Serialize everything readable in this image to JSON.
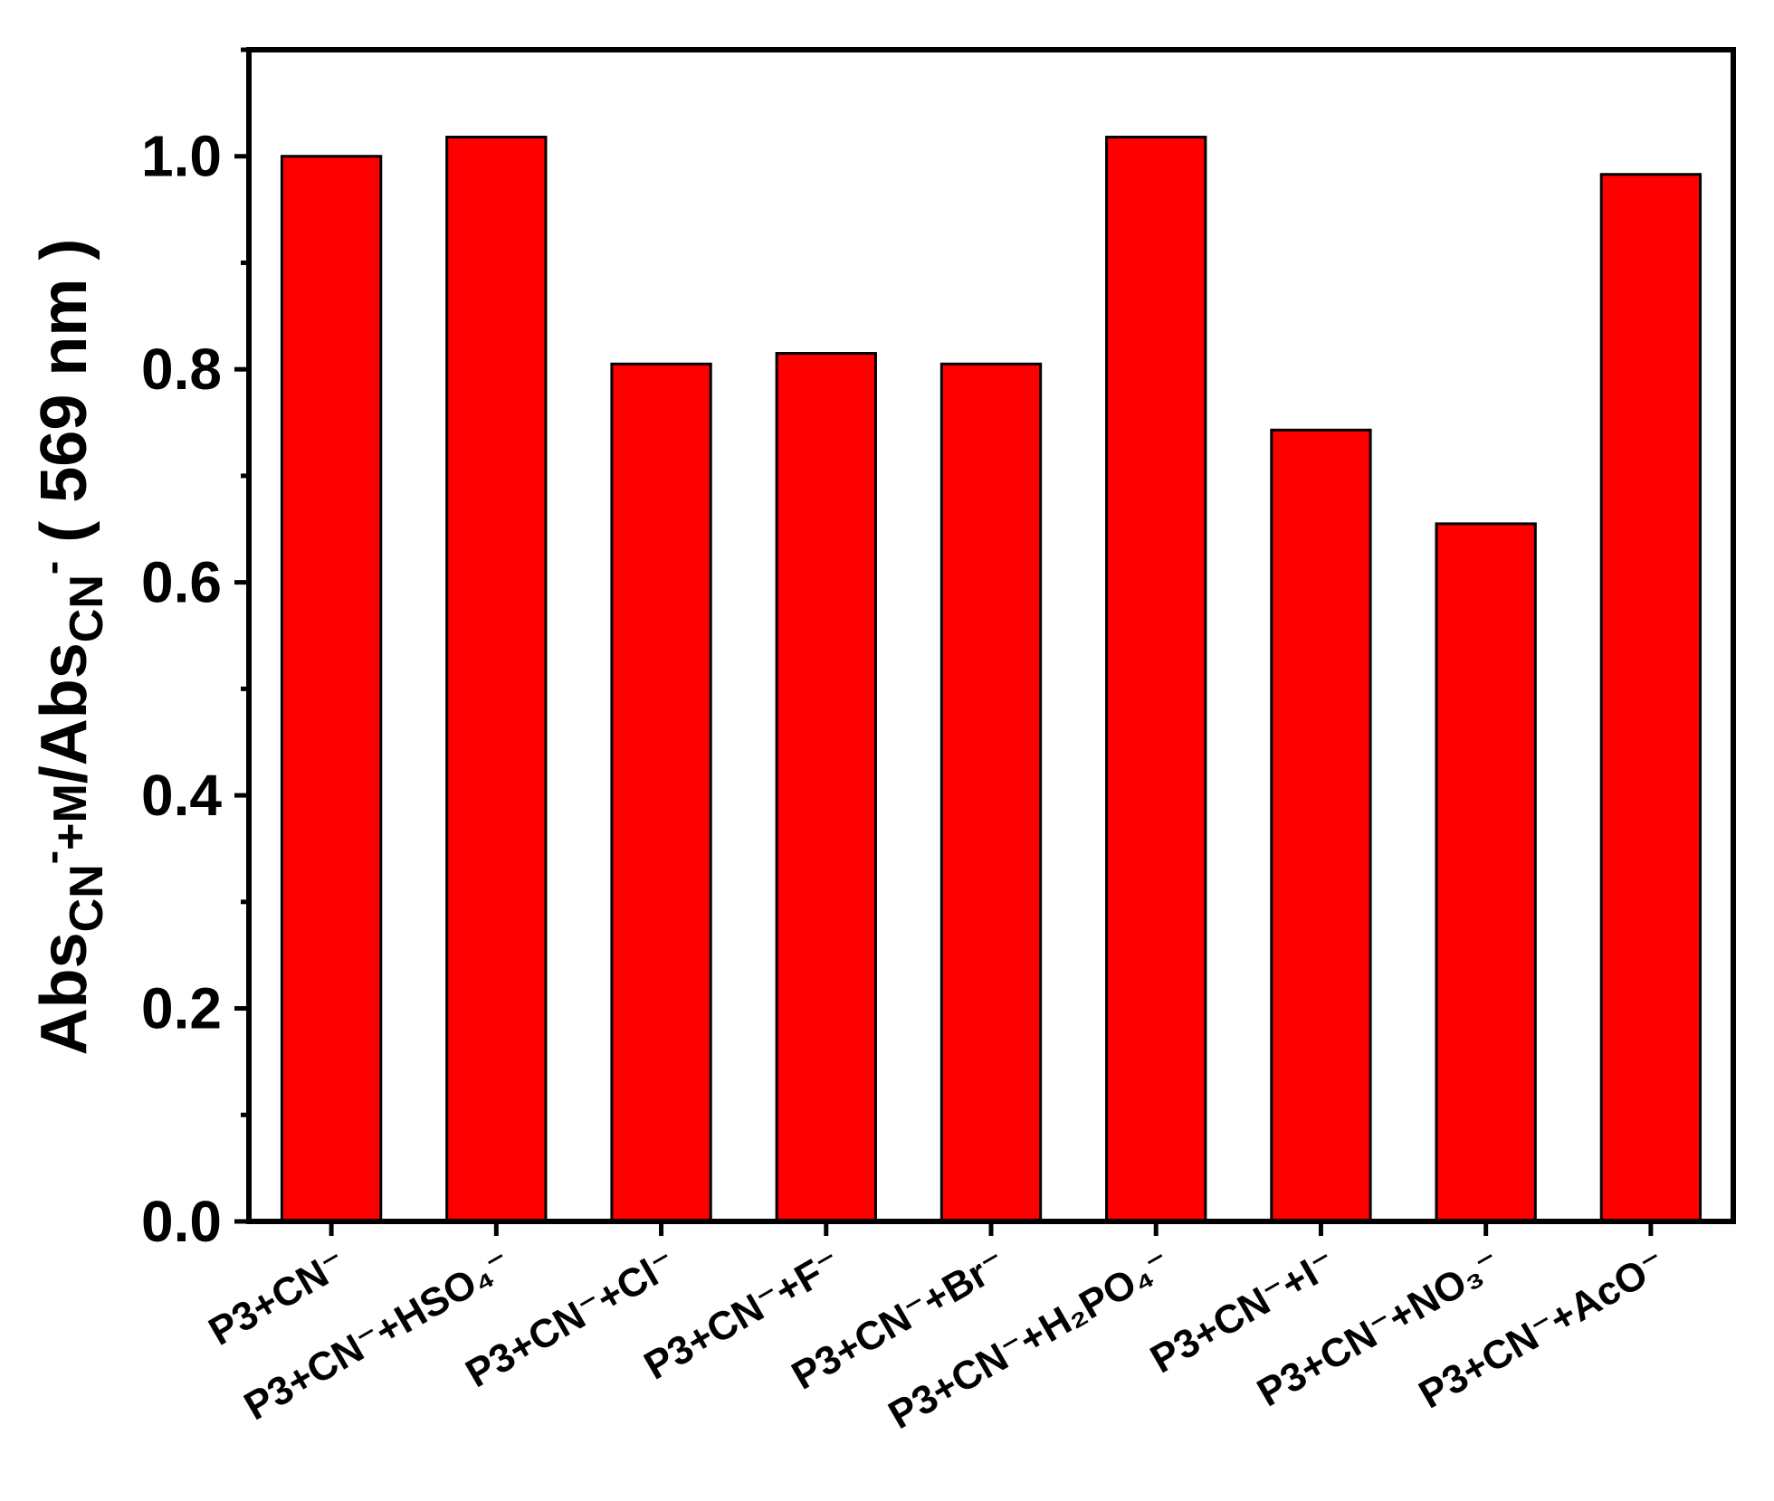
{
  "chart_data": {
    "type": "bar",
    "categories": [
      "P3+CN⁻",
      "P3+CN⁻+HSO₄⁻",
      "P3+CN⁻+Cl⁻",
      "P3+CN⁻+F⁻",
      "P3+CN⁻+Br⁻",
      "P3+CN⁻+H₂PO₄⁻",
      "P3+CN⁻+I⁻",
      "P3+CN⁻+NO₃⁻",
      "P3+CN⁻+AcO⁻"
    ],
    "values": [
      1.0,
      1.018,
      0.805,
      0.815,
      0.805,
      1.018,
      0.743,
      0.655,
      0.983
    ],
    "ylabel": "Abs_CN⁻+M/Abs_CN⁻ ( 569 nm )",
    "ylabel_parts": {
      "main1": "Abs",
      "sub1": "CN",
      "sup1": "-",
      "mid": "+M",
      "main2": "/Abs",
      "sub2": "CN",
      "sup2": "-",
      "tail": " ( 569 nm )"
    },
    "ylim": [
      0,
      1.1
    ],
    "yticks": [
      "0.0",
      "0.2",
      "0.4",
      "0.6",
      "0.8",
      "1.0"
    ],
    "ytick_values": [
      0,
      0.2,
      0.4,
      0.6,
      0.8,
      1.0
    ],
    "bar_color": "#ff0000",
    "edge_color": "#000000",
    "grid": false
  }
}
